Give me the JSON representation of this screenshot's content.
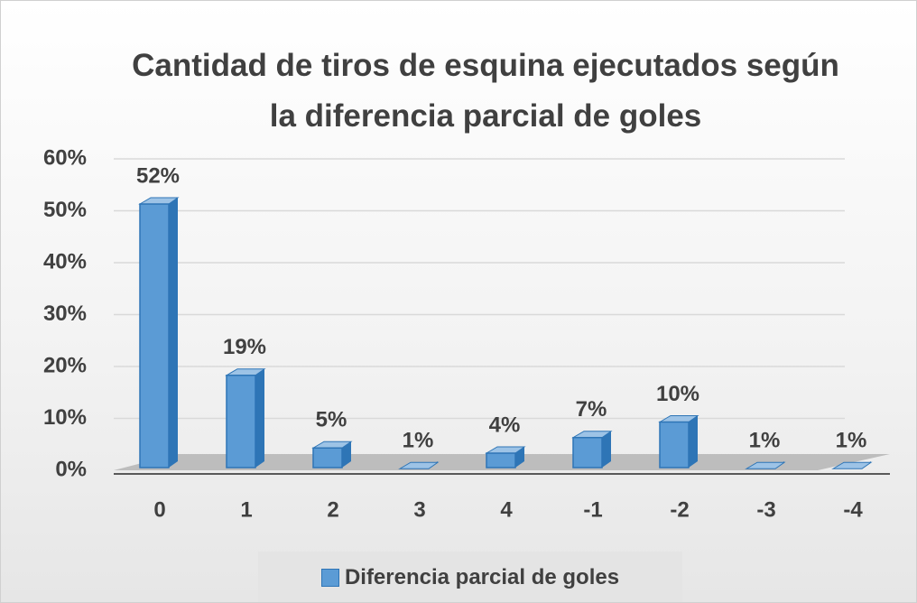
{
  "chart_data": {
    "type": "bar3d",
    "title": "Cantidad de tiros de esquina ejecutados según la diferencia parcial de goles",
    "categories": [
      "0",
      "1",
      "2",
      "3",
      "4",
      "-1",
      "-2",
      "-3",
      "-4"
    ],
    "series": [
      {
        "name": "Diferencia parcial de goles",
        "color": "#5b9bd5",
        "values": [
          52,
          19,
          5,
          1,
          4,
          7,
          10,
          1,
          1
        ],
        "value_labels": [
          "52%",
          "19%",
          "5%",
          "1%",
          "4%",
          "7%",
          "10%",
          "1%",
          "1%"
        ]
      }
    ],
    "ylim": [
      0,
      60
    ],
    "yticks": [
      {
        "value": 0,
        "label": "0%"
      },
      {
        "value": 10,
        "label": "10%"
      },
      {
        "value": 20,
        "label": "20%"
      },
      {
        "value": 30,
        "label": "30%"
      },
      {
        "value": 40,
        "label": "40%"
      },
      {
        "value": 50,
        "label": "50%"
      },
      {
        "value": 60,
        "label": "60%"
      }
    ],
    "grid": true,
    "legend": "bottom"
  }
}
